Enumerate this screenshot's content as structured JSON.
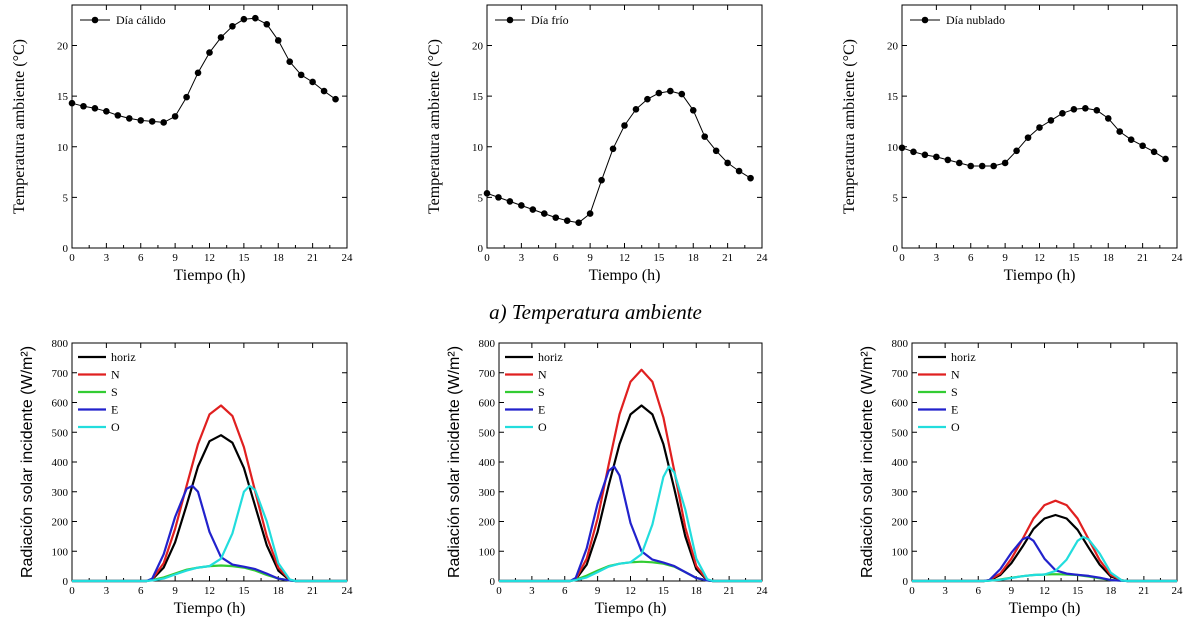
{
  "section_caption": "a) Temperatura ambiente",
  "colors": {
    "horiz": "#000000",
    "N": "#e02020",
    "S": "#33cc33",
    "E": "#2222cc",
    "O": "#22dddd"
  },
  "chart_data": [
    {
      "type": "line",
      "legend": [
        "Día cálido"
      ],
      "legend_position": "top-left",
      "xlabel": "Tiempo (h)",
      "ylabel": "Temperatura ambiente (°C)",
      "xlim": [
        0,
        24
      ],
      "ylim": [
        0,
        24
      ],
      "xticks": [
        0,
        3,
        6,
        9,
        12,
        15,
        18,
        21,
        24
      ],
      "yticks": [
        0,
        5,
        10,
        15,
        20
      ],
      "series": [
        {
          "name": "Día cálido",
          "x": [
            0,
            1,
            2,
            3,
            4,
            5,
            6,
            7,
            8,
            9,
            10,
            11,
            12,
            13,
            14,
            15,
            16,
            17,
            18,
            19,
            20,
            21,
            22,
            23
          ],
          "y": [
            14.3,
            14.0,
            13.8,
            13.5,
            13.1,
            12.8,
            12.6,
            12.5,
            12.4,
            13.0,
            14.9,
            17.3,
            19.3,
            20.8,
            21.9,
            22.6,
            22.7,
            22.1,
            20.5,
            18.4,
            17.1,
            16.4,
            15.5,
            14.7
          ]
        }
      ]
    },
    {
      "type": "line",
      "legend": [
        "Día frío"
      ],
      "legend_position": "top-left",
      "xlabel": "Tiempo (h)",
      "ylabel": "Temperatura ambiente (°C)",
      "xlim": [
        0,
        24
      ],
      "ylim": [
        0,
        24
      ],
      "xticks": [
        0,
        3,
        6,
        9,
        12,
        15,
        18,
        21,
        24
      ],
      "yticks": [
        0,
        5,
        10,
        15,
        20
      ],
      "series": [
        {
          "name": "Día frío",
          "x": [
            0,
            1,
            2,
            3,
            4,
            5,
            6,
            7,
            8,
            9,
            10,
            11,
            12,
            13,
            14,
            15,
            16,
            17,
            18,
            19,
            20,
            21,
            22,
            23
          ],
          "y": [
            5.4,
            5.0,
            4.6,
            4.2,
            3.8,
            3.4,
            3.0,
            2.7,
            2.5,
            3.4,
            6.7,
            9.8,
            12.1,
            13.7,
            14.7,
            15.3,
            15.5,
            15.2,
            13.6,
            11.0,
            9.6,
            8.4,
            7.6,
            6.9
          ]
        }
      ]
    },
    {
      "type": "line",
      "legend": [
        "Día nublado"
      ],
      "legend_position": "top-left",
      "xlabel": "Tiempo (h)",
      "ylabel": "Temperatura ambiente (°C)",
      "xlim": [
        0,
        24
      ],
      "ylim": [
        0,
        24
      ],
      "xticks": [
        0,
        3,
        6,
        9,
        12,
        15,
        18,
        21,
        24
      ],
      "yticks": [
        0,
        5,
        10,
        15,
        20
      ],
      "series": [
        {
          "name": "Día nublado",
          "x": [
            0,
            1,
            2,
            3,
            4,
            5,
            6,
            7,
            8,
            9,
            10,
            11,
            12,
            13,
            14,
            15,
            16,
            17,
            18,
            19,
            20,
            21,
            22,
            23
          ],
          "y": [
            9.9,
            9.5,
            9.2,
            9.0,
            8.7,
            8.4,
            8.1,
            8.1,
            8.1,
            8.4,
            9.6,
            10.9,
            11.9,
            12.6,
            13.3,
            13.7,
            13.8,
            13.6,
            12.8,
            11.5,
            10.7,
            10.1,
            9.5,
            8.8
          ]
        }
      ]
    },
    {
      "type": "line",
      "legend_position": "top-left",
      "xlabel": "Tiempo (h)",
      "ylabel": "Radiación solar incidente (W/m²)",
      "xlim": [
        0,
        24
      ],
      "ylim": [
        0,
        800
      ],
      "xticks": [
        0,
        3,
        6,
        9,
        12,
        15,
        18,
        21,
        24
      ],
      "yticks": [
        0,
        100,
        200,
        300,
        400,
        500,
        600,
        700,
        800
      ],
      "series": [
        {
          "name": "horiz",
          "x": [
            0,
            6.5,
            7,
            8,
            9,
            10,
            11,
            12,
            13,
            14,
            15,
            16,
            17,
            18,
            19,
            19.5,
            24
          ],
          "y": [
            0,
            0,
            5,
            45,
            130,
            255,
            385,
            470,
            490,
            465,
            380,
            250,
            120,
            35,
            3,
            0,
            0
          ]
        },
        {
          "name": "N",
          "x": [
            0,
            6.5,
            7,
            8,
            9,
            10,
            11,
            12,
            13,
            14,
            15,
            16,
            17,
            18,
            19,
            19.5,
            24
          ],
          "y": [
            0,
            0,
            6,
            60,
            175,
            320,
            460,
            560,
            590,
            555,
            450,
            300,
            150,
            45,
            4,
            0,
            0
          ]
        },
        {
          "name": "S",
          "x": [
            0,
            6.5,
            7,
            8,
            9,
            10,
            11,
            12,
            13,
            14,
            15,
            16,
            17,
            18,
            19,
            19.5,
            24
          ],
          "y": [
            0,
            0,
            3,
            12,
            25,
            38,
            45,
            50,
            52,
            50,
            45,
            35,
            20,
            8,
            2,
            0,
            0
          ]
        },
        {
          "name": "E",
          "x": [
            0,
            6.5,
            7,
            8,
            9,
            10,
            10.5,
            11,
            12,
            13,
            14,
            15,
            16,
            17,
            18,
            19,
            19.5,
            24
          ],
          "y": [
            0,
            0,
            8,
            90,
            215,
            310,
            320,
            300,
            165,
            80,
            55,
            48,
            40,
            25,
            8,
            2,
            0,
            0
          ]
        },
        {
          "name": "O",
          "x": [
            0,
            6.5,
            7,
            8,
            9,
            10,
            11,
            12,
            13,
            14,
            15,
            15.5,
            16,
            17,
            18,
            19,
            19.5,
            24
          ],
          "y": [
            0,
            0,
            2,
            8,
            22,
            35,
            45,
            50,
            75,
            160,
            300,
            320,
            305,
            200,
            60,
            5,
            0,
            0
          ]
        }
      ]
    },
    {
      "type": "line",
      "legend_position": "top-left",
      "xlabel": "Tiempo (h)",
      "ylabel": "Radiación solar incidente (W/m²)",
      "xlim": [
        0,
        24
      ],
      "ylim": [
        0,
        800
      ],
      "xticks": [
        0,
        3,
        6,
        9,
        12,
        15,
        18,
        21,
        24
      ],
      "yticks": [
        0,
        100,
        200,
        300,
        400,
        500,
        600,
        700,
        800
      ],
      "series": [
        {
          "name": "horiz",
          "x": [
            0,
            6.5,
            7,
            8,
            9,
            10,
            11,
            12,
            13,
            14,
            15,
            16,
            17,
            18,
            19,
            19.5,
            24
          ],
          "y": [
            0,
            0,
            5,
            55,
            165,
            320,
            460,
            560,
            590,
            560,
            460,
            310,
            150,
            40,
            3,
            0,
            0
          ]
        },
        {
          "name": "N",
          "x": [
            0,
            6.5,
            7,
            8,
            9,
            10,
            11,
            12,
            13,
            14,
            15,
            16,
            17,
            18,
            19,
            19.5,
            24
          ],
          "y": [
            0,
            0,
            6,
            75,
            210,
            390,
            560,
            670,
            710,
            670,
            550,
            370,
            180,
            50,
            4,
            0,
            0
          ]
        },
        {
          "name": "S",
          "x": [
            0,
            6.5,
            7,
            8,
            9,
            10,
            11,
            12,
            13,
            14,
            15,
            16,
            17,
            18,
            19,
            19.5,
            24
          ],
          "y": [
            0,
            0,
            4,
            18,
            35,
            50,
            58,
            63,
            65,
            63,
            58,
            48,
            30,
            10,
            2,
            0,
            0
          ]
        },
        {
          "name": "E",
          "x": [
            0,
            6.5,
            7,
            8,
            9,
            10,
            10.5,
            11,
            12,
            13,
            14,
            15,
            16,
            17,
            18,
            19,
            19.5,
            24
          ],
          "y": [
            0,
            0,
            10,
            110,
            260,
            370,
            385,
            355,
            195,
            100,
            72,
            62,
            50,
            30,
            10,
            2,
            0,
            0
          ]
        },
        {
          "name": "O",
          "x": [
            0,
            6.5,
            7,
            8,
            9,
            10,
            11,
            12,
            13,
            14,
            15,
            15.5,
            16,
            17,
            18,
            19,
            19.5,
            24
          ],
          "y": [
            0,
            0,
            3,
            12,
            30,
            48,
            58,
            63,
            90,
            190,
            350,
            385,
            365,
            240,
            75,
            6,
            0,
            0
          ]
        }
      ]
    },
    {
      "type": "line",
      "legend_position": "top-left",
      "xlabel": "Tiempo (h)",
      "ylabel": "Radiación solar incidente (W/m²)",
      "xlim": [
        0,
        24
      ],
      "ylim": [
        0,
        800
      ],
      "xticks": [
        0,
        3,
        6,
        9,
        12,
        15,
        18,
        21,
        24
      ],
      "yticks": [
        0,
        100,
        200,
        300,
        400,
        500,
        600,
        700,
        800
      ],
      "series": [
        {
          "name": "horiz",
          "x": [
            0,
            6.5,
            7,
            8,
            9,
            10,
            11,
            12,
            13,
            14,
            15,
            16,
            17,
            18,
            19,
            19.5,
            24
          ],
          "y": [
            0,
            0,
            2,
            20,
            60,
            115,
            175,
            210,
            222,
            210,
            172,
            112,
            55,
            15,
            2,
            0,
            0
          ]
        },
        {
          "name": "N",
          "x": [
            0,
            6.5,
            7,
            8,
            9,
            10,
            11,
            12,
            13,
            14,
            15,
            16,
            17,
            18,
            19,
            19.5,
            24
          ],
          "y": [
            0,
            0,
            3,
            25,
            75,
            140,
            210,
            255,
            270,
            255,
            210,
            140,
            70,
            20,
            2,
            0,
            0
          ]
        },
        {
          "name": "S",
          "x": [
            0,
            6.5,
            7,
            8,
            9,
            10,
            11,
            12,
            13,
            14,
            15,
            16,
            17,
            18,
            19,
            19.5,
            24
          ],
          "y": [
            0,
            0,
            1,
            5,
            11,
            16,
            20,
            22,
            23,
            22,
            20,
            15,
            9,
            3,
            1,
            0,
            0
          ]
        },
        {
          "name": "E",
          "x": [
            0,
            6.5,
            7,
            8,
            9,
            10,
            10.5,
            11,
            12,
            13,
            14,
            15,
            16,
            17,
            18,
            19,
            19.5,
            24
          ],
          "y": [
            0,
            0,
            3,
            40,
            95,
            140,
            148,
            135,
            75,
            36,
            25,
            21,
            17,
            11,
            3,
            1,
            0,
            0
          ]
        },
        {
          "name": "O",
          "x": [
            0,
            6.5,
            7,
            8,
            9,
            10,
            11,
            12,
            13,
            14,
            15,
            15.5,
            16,
            17,
            18,
            19,
            19.5,
            24
          ],
          "y": [
            0,
            0,
            1,
            4,
            10,
            16,
            20,
            22,
            34,
            72,
            135,
            148,
            140,
            92,
            28,
            2,
            0,
            0
          ]
        }
      ]
    }
  ]
}
